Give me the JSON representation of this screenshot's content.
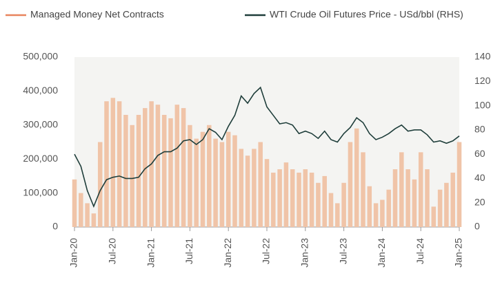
{
  "chart_data": {
    "type": "bar-line",
    "categories": [
      "Jan-20",
      null,
      null,
      null,
      null,
      null,
      "Jul-20",
      null,
      null,
      null,
      null,
      null,
      "Jan-21",
      null,
      null,
      null,
      null,
      null,
      "Jul-21",
      null,
      null,
      null,
      null,
      null,
      "Jan-22",
      null,
      null,
      null,
      null,
      null,
      "Jul-22",
      null,
      null,
      null,
      null,
      null,
      "Jan-23",
      null,
      null,
      null,
      null,
      null,
      "Jul-23",
      null,
      null,
      null,
      null,
      null,
      "Jan-24",
      null,
      null,
      null,
      null,
      null,
      "Jul-24",
      null,
      null,
      null,
      null,
      null,
      "Jan-25"
    ],
    "series": [
      {
        "name": "Managed Money Net Contracts",
        "type": "bar",
        "color": "#f0c4a8",
        "values": [
          140000,
          100000,
          70000,
          40000,
          250000,
          370000,
          380000,
          370000,
          330000,
          300000,
          330000,
          350000,
          370000,
          360000,
          330000,
          320000,
          360000,
          350000,
          300000,
          260000,
          280000,
          300000,
          260000,
          250000,
          280000,
          270000,
          230000,
          210000,
          230000,
          250000,
          200000,
          160000,
          170000,
          190000,
          170000,
          160000,
          170000,
          160000,
          130000,
          150000,
          100000,
          70000,
          130000,
          250000,
          290000,
          220000,
          120000,
          70000,
          80000,
          110000,
          170000,
          220000,
          170000,
          140000,
          220000,
          170000,
          60000,
          110000,
          130000,
          160000,
          250000
        ]
      },
      {
        "name": "WTI Crude Oil Futures Price - USd/bbl (RHS)",
        "type": "line",
        "axis": "y2",
        "color": "#1e3d3a",
        "values": [
          60,
          50,
          30,
          17,
          30,
          39,
          41,
          42,
          40,
          40,
          41,
          48,
          52,
          59,
          62,
          62,
          65,
          71,
          72,
          68,
          72,
          81,
          78,
          72,
          83,
          92,
          108,
          102,
          110,
          115,
          99,
          92,
          85,
          86,
          84,
          77,
          79,
          77,
          73,
          79,
          72,
          70,
          77,
          82,
          90,
          86,
          77,
          72,
          74,
          77,
          81,
          84,
          79,
          80,
          80,
          76,
          70,
          71,
          69,
          71,
          75
        ]
      }
    ],
    "ylim": [
      0,
      500000
    ],
    "yticks": [
      0,
      {
        "value": 100000,
        "label": "100,000"
      },
      {
        "value": 200000,
        "label": "200,000"
      },
      {
        "value": 300000,
        "label": "300,000"
      },
      {
        "value": 400000,
        "label": "400,000"
      },
      {
        "value": 500000,
        "label": "500,000"
      }
    ],
    "y2lim": [
      0,
      140
    ],
    "y2ticks": [
      0,
      20,
      40,
      60,
      80,
      100,
      120,
      140
    ],
    "grid": false
  }
}
